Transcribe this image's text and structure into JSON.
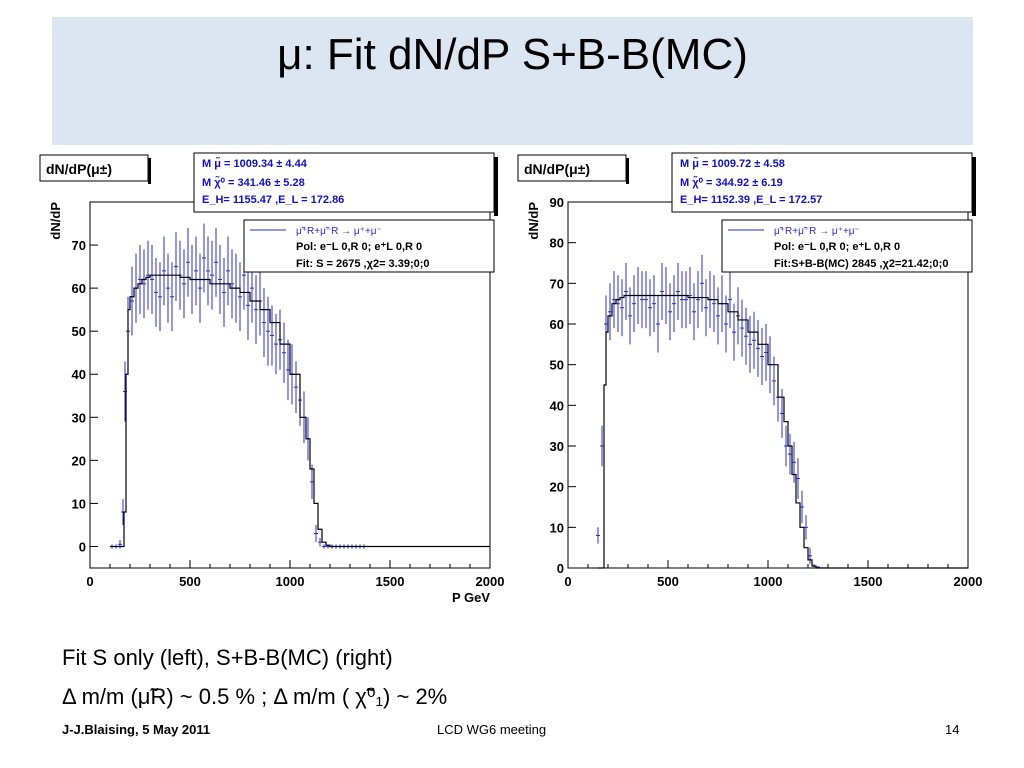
{
  "slide": {
    "title": "μ: Fit dN/dP S+B-B(MC)",
    "caption_line1": "Fit S only (left), S+B-B(MC) (right)",
    "caption_line2": "Δ m/m  (μ̃R) ~ 0.5 %  ; Δ m/m ( χ̃⁰₁) ~ 2%",
    "footer_left": "J-J.Blaising, 5 May 2011",
    "footer_center": "LCD WG6 meeting",
    "footer_right": "14"
  },
  "colors": {
    "title_band": "#dce6f2",
    "data_blue": "#2b2bd4",
    "stats_blue": "#1010c8",
    "fit_black": "#000000"
  },
  "chart_data": [
    {
      "type": "histogram",
      "title": "dN/dP(μ±)",
      "xlabel": "P GeV",
      "ylabel": "dN/dP",
      "xlim": [
        0,
        2000
      ],
      "ylim": [
        -5,
        80
      ],
      "xticks": [
        0,
        500,
        1000,
        1500,
        2000
      ],
      "yticks": [
        0,
        10,
        20,
        30,
        40,
        50,
        60,
        70
      ],
      "stats": {
        "line1": "M μ̃ =   1009.34 ±  4.44",
        "line2": "M χ̃⁰ =   341.46 ±  5.28",
        "line3": "E_H=   1155.47  ,E_L =  172.86"
      },
      "legend": {
        "process": "μ̃⁺R+μ̃⁻R → μ⁺+μ⁻",
        "pol": "Pol: e⁻L 0,R 0; e⁺L 0,R 0",
        "fit": "Fit: S =  2675 ,χ2= 3.39;0;0"
      },
      "series": [
        {
          "role": "data",
          "x": [
            110,
            130,
            150,
            165,
            175,
            190,
            210,
            230,
            250,
            270,
            290,
            310,
            330,
            350,
            370,
            390,
            410,
            430,
            450,
            470,
            490,
            510,
            530,
            550,
            570,
            590,
            610,
            630,
            650,
            670,
            690,
            710,
            730,
            750,
            770,
            790,
            810,
            830,
            850,
            870,
            890,
            910,
            930,
            950,
            970,
            990,
            1010,
            1030,
            1050,
            1070,
            1090,
            1110,
            1130,
            1150,
            1170,
            1190,
            1210,
            1230,
            1250,
            1270,
            1290,
            1310,
            1330,
            1350,
            1370
          ],
          "y": [
            0,
            0,
            0.5,
            8,
            36,
            50,
            57,
            60,
            62,
            61,
            63,
            62,
            59,
            58,
            64,
            60,
            58,
            65,
            63,
            61,
            66,
            62,
            64,
            60,
            67,
            64,
            63,
            66,
            62,
            59,
            64,
            61,
            60,
            58,
            63,
            56,
            60,
            55,
            57,
            52,
            50,
            49,
            47,
            48,
            45,
            41,
            40,
            37,
            34,
            30,
            25,
            15,
            3,
            1,
            0,
            0,
            0,
            0,
            0,
            0,
            0,
            0,
            0,
            0,
            0
          ],
          "err": [
            0.5,
            0.5,
            1,
            3,
            7,
            8,
            8,
            8,
            8,
            8,
            8,
            8,
            8,
            8,
            8,
            8,
            8,
            8,
            8,
            8,
            8,
            8,
            8,
            8,
            8,
            8,
            8,
            8,
            8,
            8,
            8,
            8,
            8,
            8,
            8,
            8,
            8,
            8,
            8,
            8,
            8,
            7,
            7,
            7,
            7,
            7,
            7,
            6,
            6,
            6,
            5,
            4,
            2,
            1,
            0.5,
            0.5,
            0.5,
            0.5,
            0.5,
            0.5,
            0.5,
            0.5,
            0.5,
            0.5,
            0.5
          ]
        },
        {
          "role": "fit",
          "x": [
            100,
            160,
            170,
            180,
            190,
            200,
            220,
            240,
            260,
            280,
            300,
            350,
            400,
            450,
            500,
            550,
            600,
            650,
            700,
            750,
            800,
            850,
            900,
            950,
            1000,
            1050,
            1080,
            1100,
            1120,
            1140,
            1160,
            1180,
            1200,
            1500,
            2000
          ],
          "y": [
            0,
            0,
            8,
            40,
            55,
            58,
            60,
            61,
            62,
            62.5,
            63,
            63,
            63,
            62.5,
            62,
            62,
            61,
            61,
            60,
            59,
            57,
            55,
            52,
            47,
            40,
            30,
            25,
            18,
            10,
            4,
            1,
            0.3,
            0,
            0,
            0
          ]
        }
      ]
    },
    {
      "type": "histogram",
      "title": "dN/dP(μ±)",
      "xlabel": "",
      "ylabel": "dN/dP",
      "xlim": [
        0,
        2000
      ],
      "ylim": [
        0,
        90
      ],
      "xticks": [
        0,
        500,
        1000,
        1500,
        2000
      ],
      "yticks": [
        0,
        10,
        20,
        30,
        40,
        50,
        60,
        70,
        80,
        90
      ],
      "stats": {
        "line1": "M μ̃ =   1009.72 ±  4.58",
        "line2": "M χ̃⁰ =   344.92 ±  6.19",
        "line3": "E_H=   1152.39  ,E_L =  172.57"
      },
      "legend": {
        "process": "μ̃⁺R+μ̃⁻R → μ⁺+μ⁻",
        "pol": "Pol: e⁻L 0,R 0; e⁺L 0,R 0",
        "fit": "Fit:S+B-B(MC) 2845 ,χ2=21.42;0;0"
      },
      "series": [
        {
          "role": "data",
          "x": [
            150,
            170,
            190,
            210,
            230,
            250,
            270,
            290,
            310,
            330,
            350,
            370,
            390,
            410,
            430,
            450,
            470,
            490,
            510,
            530,
            550,
            570,
            590,
            610,
            630,
            650,
            670,
            690,
            710,
            730,
            750,
            770,
            790,
            810,
            830,
            850,
            870,
            890,
            910,
            930,
            950,
            970,
            990,
            1010,
            1030,
            1050,
            1070,
            1090,
            1110,
            1130,
            1150,
            1170,
            1190,
            1210,
            1230,
            1250,
            1270,
            1290
          ],
          "y": [
            8,
            30,
            60,
            63,
            66,
            65,
            64,
            68,
            62,
            65,
            67,
            66,
            66,
            64,
            65,
            60,
            68,
            67,
            63,
            65,
            68,
            66,
            66,
            67,
            63,
            66,
            70,
            64,
            66,
            65,
            62,
            65,
            60,
            66,
            58,
            62,
            59,
            57,
            55,
            56,
            54,
            52,
            53,
            50,
            46,
            42,
            38,
            30,
            28,
            26,
            22,
            15,
            10,
            3,
            0.5,
            0.2,
            0,
            0
          ],
          "err": [
            2,
            5,
            7,
            7,
            7,
            7,
            7,
            7,
            7,
            7,
            7,
            7,
            7,
            7,
            7,
            7,
            7,
            7,
            7,
            7,
            7,
            7,
            7,
            7,
            7,
            7,
            7,
            7,
            7,
            7,
            7,
            7,
            7,
            7,
            7,
            7,
            7,
            7,
            7,
            7,
            7,
            7,
            7,
            7,
            6,
            6,
            6,
            5,
            5,
            5,
            5,
            4,
            3,
            2,
            0.5,
            0.3,
            0.2,
            0.2
          ]
        },
        {
          "role": "fit",
          "x": [
            150,
            170,
            180,
            190,
            200,
            220,
            240,
            260,
            280,
            300,
            350,
            400,
            450,
            500,
            550,
            600,
            650,
            700,
            750,
            800,
            850,
            900,
            950,
            1000,
            1050,
            1080,
            1100,
            1120,
            1140,
            1160,
            1180,
            1200,
            1220,
            1240,
            1300,
            2000
          ],
          "y": [
            0,
            0,
            45,
            58,
            62,
            65,
            66,
            66.5,
            67,
            67,
            67,
            67,
            67,
            67,
            67,
            66.5,
            66.5,
            66,
            65,
            63,
            61,
            58,
            55,
            50,
            42,
            36,
            30,
            23,
            16,
            10,
            5,
            2,
            0.5,
            0,
            0,
            0
          ]
        }
      ]
    }
  ]
}
